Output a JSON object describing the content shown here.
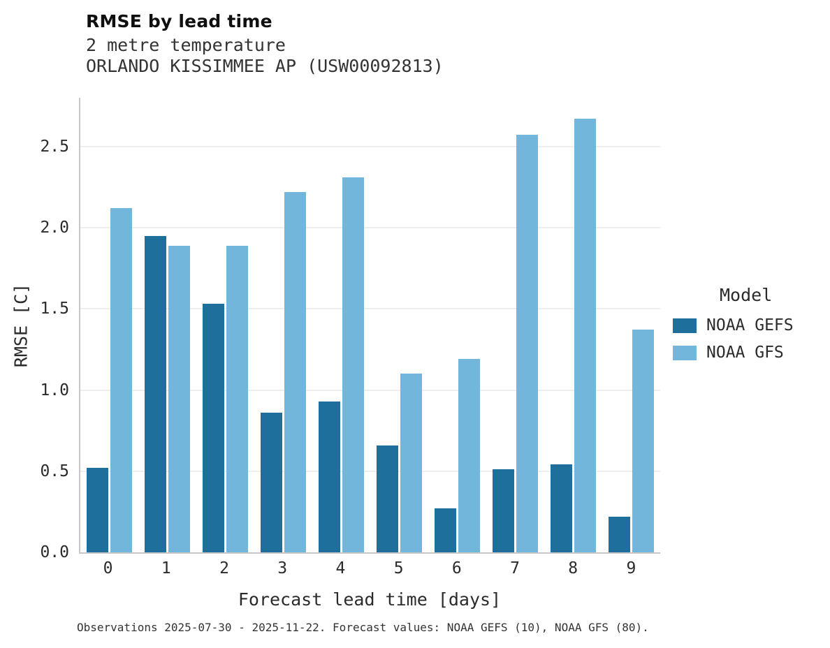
{
  "header": {
    "title": "RMSE by lead time",
    "subtitle1": "2 metre temperature",
    "subtitle2": "ORLANDO KISSIMMEE AP (USW00092813)"
  },
  "legend": {
    "title": "Model",
    "items": [
      {
        "label": "NOAA GEFS",
        "color": "#1e6f9c"
      },
      {
        "label": "NOAA GFS",
        "color": "#72b6dc"
      }
    ]
  },
  "caption": "Observations 2025-07-30 - 2025-11-22. Forecast values: NOAA GEFS (10), NOAA GFS (80).",
  "chart_data": {
    "type": "bar",
    "title": "RMSE by lead time",
    "subtitle": "2 metre temperature — ORLANDO KISSIMMEE AP (USW00092813)",
    "categories": [
      "0",
      "1",
      "2",
      "3",
      "4",
      "5",
      "6",
      "7",
      "8",
      "9"
    ],
    "series": [
      {
        "name": "NOAA GEFS",
        "color": "#1e6f9c",
        "values": [
          0.52,
          1.95,
          1.53,
          0.86,
          0.93,
          0.66,
          0.27,
          0.51,
          0.54,
          0.22
        ]
      },
      {
        "name": "NOAA GFS",
        "color": "#72b6dc",
        "values": [
          2.12,
          1.89,
          1.89,
          2.22,
          2.31,
          1.1,
          1.19,
          2.57,
          2.67,
          1.37
        ]
      }
    ],
    "xlabel": "Forecast lead time [days]",
    "ylabel": "RMSE [C]",
    "ylim": [
      0,
      2.8
    ],
    "yticks": [
      0.0,
      0.5,
      1.0,
      1.5,
      2.0,
      2.5
    ],
    "grid": true,
    "legend_position": "right"
  }
}
